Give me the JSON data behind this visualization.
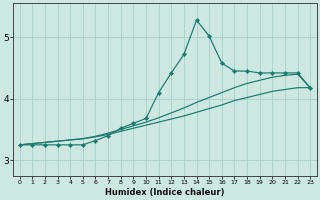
{
  "xlabel": "Humidex (Indice chaleur)",
  "ylabel": "",
  "xlim": [
    -0.5,
    23.5
  ],
  "ylim": [
    2.75,
    5.55
  ],
  "yticks": [
    3,
    4,
    5
  ],
  "xticks": [
    0,
    1,
    2,
    3,
    4,
    5,
    6,
    7,
    8,
    9,
    10,
    11,
    12,
    13,
    14,
    15,
    16,
    17,
    18,
    19,
    20,
    21,
    22,
    23
  ],
  "bg_color": "#cce8e0",
  "grid_color": "#aacfc8",
  "line_color": "#1a7a6e",
  "x": [
    0,
    1,
    2,
    3,
    4,
    5,
    6,
    7,
    8,
    9,
    10,
    11,
    12,
    13,
    14,
    15,
    16,
    17,
    18,
    19,
    20,
    21,
    22,
    23
  ],
  "line1_y": [
    3.25,
    3.25,
    3.25,
    3.25,
    3.25,
    3.25,
    3.32,
    3.4,
    3.52,
    3.6,
    3.68,
    4.1,
    4.42,
    4.72,
    5.28,
    5.02,
    4.58,
    4.45,
    4.45,
    4.42,
    4.42,
    4.42,
    4.42,
    4.18
  ],
  "line2_y": [
    3.25,
    3.27,
    3.29,
    3.31,
    3.33,
    3.35,
    3.39,
    3.44,
    3.5,
    3.56,
    3.62,
    3.69,
    3.77,
    3.85,
    3.94,
    4.02,
    4.1,
    4.18,
    4.25,
    4.3,
    4.35,
    4.38,
    4.4,
    4.18
  ],
  "line3_y": [
    3.25,
    3.27,
    3.29,
    3.31,
    3.33,
    3.35,
    3.38,
    3.42,
    3.47,
    3.52,
    3.57,
    3.62,
    3.67,
    3.72,
    3.78,
    3.84,
    3.9,
    3.97,
    4.02,
    4.07,
    4.12,
    4.15,
    4.18,
    4.18
  ]
}
